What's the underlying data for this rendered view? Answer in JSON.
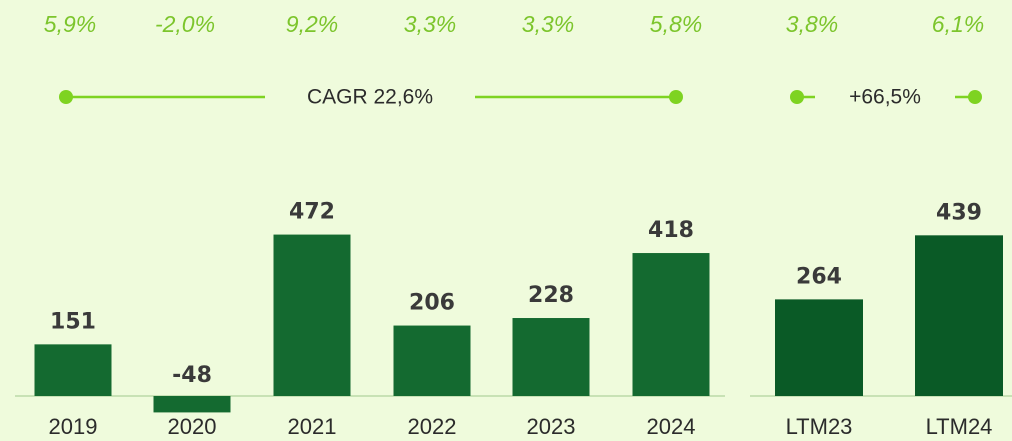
{
  "chart_data": [
    {
      "type": "bar",
      "categories": [
        "2019",
        "2020",
        "2021",
        "2022",
        "2023",
        "2024"
      ],
      "values": [
        151,
        -48,
        472,
        206,
        228,
        418
      ],
      "color": "#146a30",
      "annotations": [
        "5,9%",
        "-2,0%",
        "9,2%",
        "3,3%",
        "3,3%",
        "5,8%"
      ],
      "growth_label": "CAGR 22,6%"
    },
    {
      "type": "bar",
      "categories": [
        "LTM23",
        "LTM24"
      ],
      "values": [
        264,
        439
      ],
      "color": "#0a5a26",
      "annotations": [
        "3,8%",
        "6,1%"
      ],
      "growth_label": "+66,5%"
    }
  ]
}
